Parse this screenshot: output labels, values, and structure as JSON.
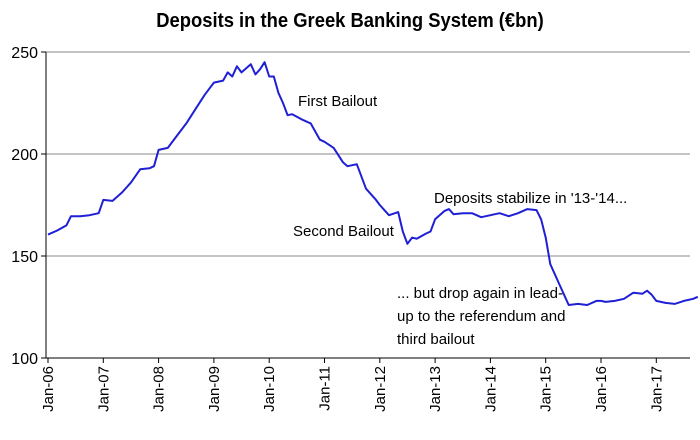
{
  "chart_data": {
    "type": "line",
    "title": "Deposits in the Greek Banking System (€bn)",
    "xlabel": "",
    "ylabel": "",
    "ylim": [
      100,
      250
    ],
    "yticks": [
      "100",
      "150",
      "200",
      "250"
    ],
    "xticks": [
      "Jan-06",
      "Jan-07",
      "Jan-08",
      "Jan-09",
      "Jan-10",
      "Jan-11",
      "Jan-12",
      "Jan-13",
      "Jan-14",
      "Jan-15",
      "Jan-16",
      "Jan-17"
    ],
    "grid": "horizontal",
    "line_color": "#1f1fd6",
    "series": [
      {
        "values": [
          [
            "2006-01",
            160.5
          ],
          [
            "2006-03",
            162.5
          ],
          [
            "2006-05",
            165
          ],
          [
            "2006-06",
            169.5
          ],
          [
            "2006-08",
            169.5
          ],
          [
            "2006-10",
            170
          ],
          [
            "2006-12",
            171
          ],
          [
            "2007-01",
            177.5
          ],
          [
            "2007-03",
            177
          ],
          [
            "2007-05",
            181
          ],
          [
            "2007-07",
            186
          ],
          [
            "2007-09",
            192.5
          ],
          [
            "2007-11",
            193
          ],
          [
            "2007-12",
            194
          ],
          [
            "2008-01",
            202
          ],
          [
            "2008-03",
            203
          ],
          [
            "2008-05",
            209
          ],
          [
            "2008-07",
            215
          ],
          [
            "2008-09",
            222
          ],
          [
            "2008-11",
            229
          ],
          [
            "2008-12",
            232
          ],
          [
            "2009-01",
            235
          ],
          [
            "2009-03",
            236
          ],
          [
            "2009-04",
            240
          ],
          [
            "2009-05",
            238
          ],
          [
            "2009-06",
            243
          ],
          [
            "2009-07",
            240
          ],
          [
            "2009-08",
            242
          ],
          [
            "2009-09",
            244
          ],
          [
            "2009-10",
            239
          ],
          [
            "2009-11",
            241.5
          ],
          [
            "2009-12",
            245
          ],
          [
            "2010-01",
            238
          ],
          [
            "2010-02",
            238
          ],
          [
            "2010-03",
            230
          ],
          [
            "2010-04",
            225
          ],
          [
            "2010-05",
            219
          ],
          [
            "2010-06",
            219.5
          ],
          [
            "2010-08",
            217
          ],
          [
            "2010-10",
            215
          ],
          [
            "2010-12",
            207
          ],
          [
            "2011-01",
            206
          ],
          [
            "2011-03",
            203
          ],
          [
            "2011-05",
            196
          ],
          [
            "2011-06",
            194
          ],
          [
            "2011-08",
            195
          ],
          [
            "2011-10",
            183
          ],
          [
            "2011-12",
            178
          ],
          [
            "2012-01",
            175
          ],
          [
            "2012-03",
            170
          ],
          [
            "2012-05",
            171.5
          ],
          [
            "2012-06",
            162
          ],
          [
            "2012-07",
            156
          ],
          [
            "2012-08",
            159
          ],
          [
            "2012-09",
            158.5
          ],
          [
            "2012-11",
            161
          ],
          [
            "2012-12",
            162
          ],
          [
            "2013-01",
            168
          ],
          [
            "2013-03",
            172
          ],
          [
            "2013-04",
            173
          ],
          [
            "2013-05",
            170.5
          ],
          [
            "2013-07",
            171
          ],
          [
            "2013-09",
            171
          ],
          [
            "2013-11",
            169
          ],
          [
            "2014-01",
            170
          ],
          [
            "2014-03",
            171
          ],
          [
            "2014-05",
            169.5
          ],
          [
            "2014-07",
            171
          ],
          [
            "2014-09",
            173
          ],
          [
            "2014-11",
            172.5
          ],
          [
            "2014-12",
            168
          ],
          [
            "2015-01",
            159
          ],
          [
            "2015-02",
            146
          ],
          [
            "2015-03",
            141
          ],
          [
            "2015-04",
            136
          ],
          [
            "2015-05",
            131
          ],
          [
            "2015-06",
            126
          ],
          [
            "2015-08",
            126.5
          ],
          [
            "2015-10",
            126
          ],
          [
            "2015-12",
            128
          ],
          [
            "2016-01",
            128
          ],
          [
            "2016-02",
            127.5
          ],
          [
            "2016-04",
            128
          ],
          [
            "2016-06",
            129
          ],
          [
            "2016-08",
            132
          ],
          [
            "2016-10",
            131.5
          ],
          [
            "2016-11",
            133
          ],
          [
            "2016-12",
            131
          ],
          [
            "2017-01",
            128
          ],
          [
            "2017-03",
            127
          ],
          [
            "2017-05",
            126.5
          ],
          [
            "2017-07",
            128
          ],
          [
            "2017-09",
            129
          ],
          [
            "2017-10",
            130
          ]
        ]
      }
    ],
    "annotations": [
      "First Bailout",
      "Second Bailout",
      "Deposits stabilize in '13-'14...",
      "... but drop again in lead-",
      "up to the referendum and",
      "third bailout"
    ]
  }
}
